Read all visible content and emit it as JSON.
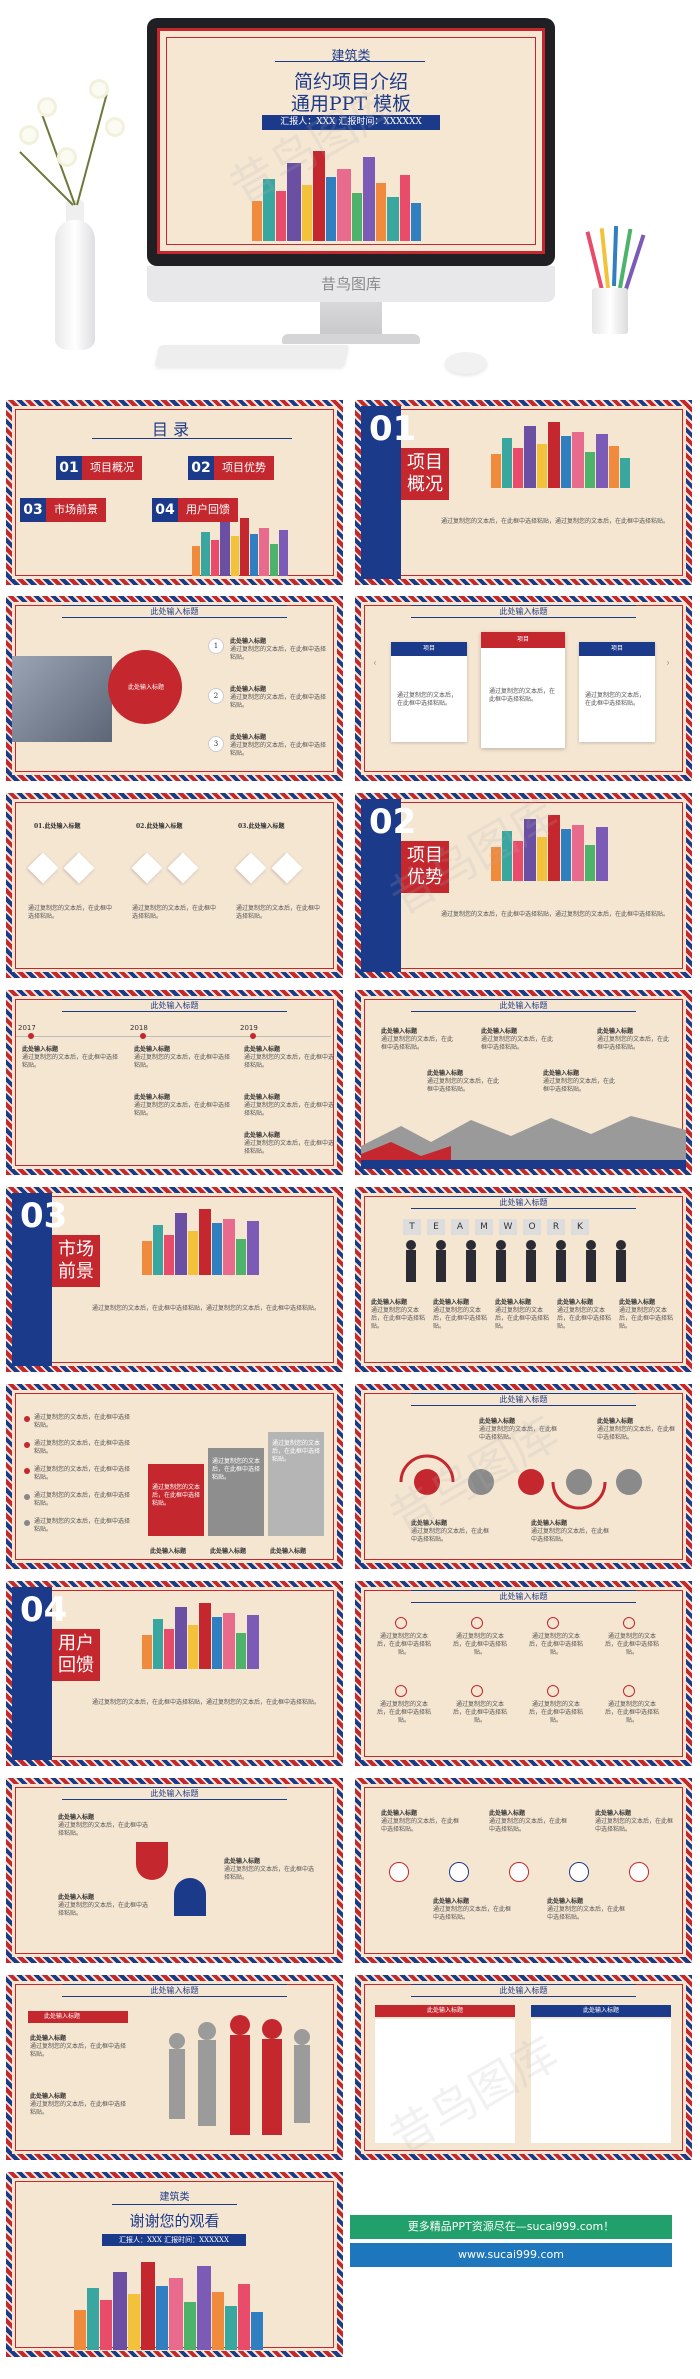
{
  "hero": {
    "category": "建筑类",
    "title_line1": "简约项目介绍",
    "title_line2": "通用PPT 模板",
    "reporter_bar": "汇报人：XXX  汇报时间：XXXXXX",
    "monitor_brand": "昔鸟图库"
  },
  "slide_header": "此处输入标题",
  "toc": {
    "title": "目 录",
    "items": [
      {
        "num": "01",
        "label": "项目概况"
      },
      {
        "num": "02",
        "label": "项目优势"
      },
      {
        "num": "03",
        "label": "市场前景"
      },
      {
        "num": "04",
        "label": "用户回馈"
      }
    ]
  },
  "sections": [
    {
      "num": "01",
      "title_a": "项目",
      "title_b": "概况"
    },
    {
      "num": "02",
      "title_a": "项目",
      "title_b": "优势"
    },
    {
      "num": "03",
      "title_a": "市场",
      "title_b": "前景"
    },
    {
      "num": "04",
      "title_a": "用户",
      "title_b": "回馈"
    }
  ],
  "body_text": "通过复制您的文本后，在此框中选择粘贴，通过复制您的文本后，在此框中选择粘贴。",
  "short_text": "通过复制您的文本后，在此框中选择粘贴。",
  "input_title": "此处输入标题",
  "labels": {
    "click_here": "此处输入标题",
    "numbered": [
      "01.此处输入标题",
      "02.此处输入标题",
      "03.此处输入标题"
    ],
    "years": [
      "2017",
      "2018",
      "2019"
    ],
    "tab": "项目",
    "teamwork": [
      "T",
      "E",
      "A",
      "M",
      "W",
      "O",
      "R",
      "K"
    ],
    "bubble_title": "此处输入标题"
  },
  "ending": {
    "category": "建筑类",
    "title": "谢谢您的观看",
    "reporter_bar": "汇报人：XXX  汇报时间：XXXXXX"
  },
  "promo": {
    "line1": "更多精品PPT资源尽在—sucai999.com！",
    "line2": "www.sucai999.com"
  },
  "watermark": "昔鸟图库",
  "colors": {
    "red": "#c4272e",
    "blue": "#1c3a8a",
    "cream": "#f5e6d2"
  }
}
